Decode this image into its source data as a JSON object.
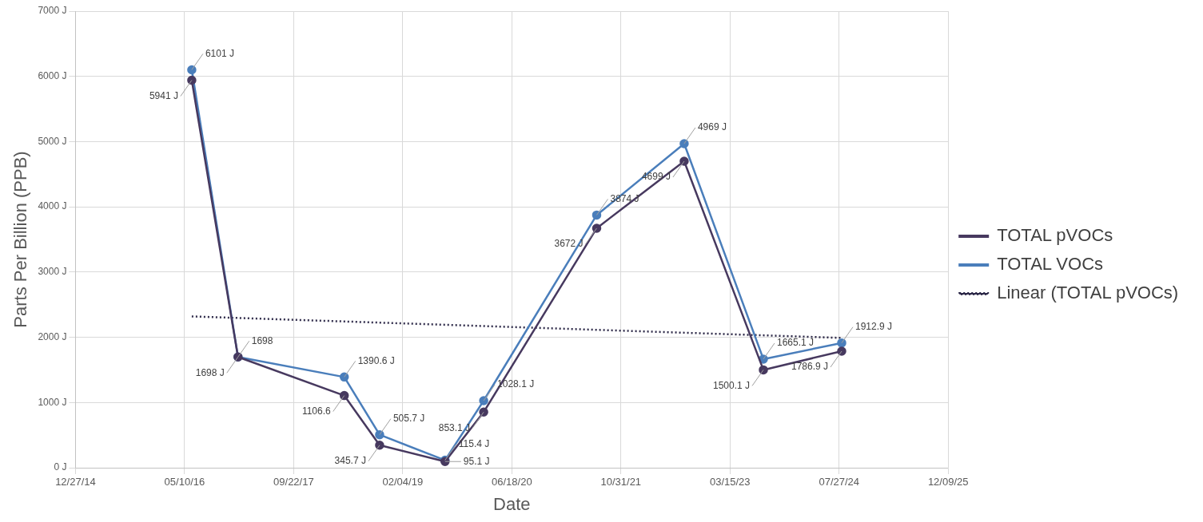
{
  "chart_data": {
    "type": "line",
    "xlabel": "Date",
    "ylabel": "Parts Per Billion (PPB)",
    "x": [
      "2016-06-12",
      "2017-01-10",
      "2018-05-12",
      "2018-10-21",
      "2019-08-17",
      "2020-02-10",
      "2021-07-12",
      "2022-08-17",
      "2023-08-15",
      "2024-08-08"
    ],
    "series": [
      {
        "name": "TOTAL pVOCs",
        "color": "#47395f",
        "values": [
          5941,
          1698,
          1106.6,
          345.7,
          95.1,
          853.1,
          3672,
          4699,
          1500.1,
          1786.9
        ],
        "value_labels": [
          "5941 J",
          "1698 J",
          "1106.6",
          "345.7 J",
          "95.1 J",
          "853.1 J",
          "3672 J",
          "4699 J",
          "1500.1 J",
          "1786.9 J"
        ]
      },
      {
        "name": "TOTAL VOCs",
        "color": "#4a7ebb",
        "values": [
          6101,
          1698,
          1390.6,
          505.7,
          115.4,
          1028.1,
          3874,
          4969,
          1665.1,
          1912.9
        ],
        "value_labels": [
          "6101 J",
          "1698",
          "1390.6 J",
          "505.7 J",
          "115.4 J",
          "1028.1 J",
          "3874 J",
          "4969 J",
          "1665.1 J",
          "1912.9 J"
        ]
      },
      {
        "name": "Linear (TOTAL pVOCs)",
        "type": "line",
        "color": "#2f2b4a",
        "line_style": "dotted",
        "marker": "none",
        "x": [
          "2016-06-12",
          "2024-08-08"
        ],
        "values": [
          2320,
          1990
        ]
      }
    ],
    "xlim": [
      "2014-12-27",
      "2025-12-09"
    ],
    "xticks": [
      {
        "value": "2014-12-27",
        "label": "12/27/14"
      },
      {
        "value": "2016-05-10",
        "label": "05/10/16"
      },
      {
        "value": "2017-09-22",
        "label": "09/22/17"
      },
      {
        "value": "2019-02-04",
        "label": "02/04/19"
      },
      {
        "value": "2020-06-18",
        "label": "06/18/20"
      },
      {
        "value": "2021-10-31",
        "label": "10/31/21"
      },
      {
        "value": "2023-03-15",
        "label": "03/15/23"
      },
      {
        "value": "2024-07-27",
        "label": "07/27/24"
      },
      {
        "value": "2025-12-09",
        "label": "12/09/25"
      }
    ],
    "ylim": [
      0,
      7000
    ],
    "yticks": [
      {
        "value": 0,
        "label": "0 J"
      },
      {
        "value": 1000,
        "label": "1000 J"
      },
      {
        "value": 2000,
        "label": "2000 J"
      },
      {
        "value": 3000,
        "label": "3000 J"
      },
      {
        "value": 4000,
        "label": "4000 J"
      },
      {
        "value": 5000,
        "label": "5000 J"
      },
      {
        "value": 6000,
        "label": "6000 J"
      },
      {
        "value": 7000,
        "label": "7000 J"
      }
    ],
    "grid": true,
    "legend": "right",
    "marker": "circle",
    "line_style": "solid"
  }
}
